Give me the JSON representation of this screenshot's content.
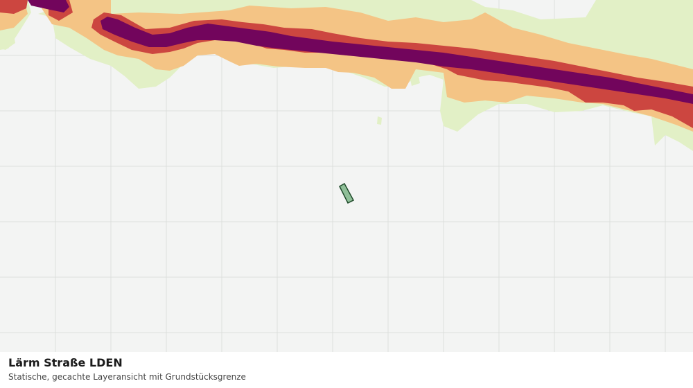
{
  "layer": {
    "title": "Lärm Straße LDEN",
    "subtitle": "Statische, gecachte Layeransicht mit Grundstücksgrenze"
  },
  "noise_bands": [
    {
      "level": "low",
      "color": "#e2f0c6"
    },
    {
      "level": "medium",
      "color": "#f4c485"
    },
    {
      "level": "high",
      "color": "#cc4640"
    },
    {
      "level": "very-high",
      "color": "#72055c"
    }
  ],
  "parcel": {
    "fill": "#8fbf98",
    "stroke": "#1f4a2a"
  },
  "map": {
    "background": "#f3f4f3",
    "grid_color": "#dcdfdc"
  }
}
